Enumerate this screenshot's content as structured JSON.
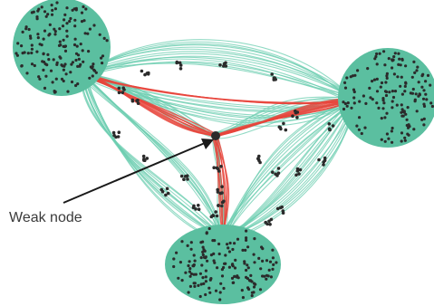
{
  "figure": {
    "annotation": "Weak node"
  },
  "colors": {
    "background": "#ffffff",
    "cluster_fill": "#5bbfa0",
    "edge_normal": "#6ccdb0",
    "edge_highlight": "#e8453c",
    "node_dot": "#2b2b2b",
    "arrow": "#1a1a1a"
  },
  "network": {
    "clusters": [
      {
        "id": "top-left"
      },
      {
        "id": "right"
      },
      {
        "id": "bottom"
      }
    ],
    "weak_node": {
      "id": "hub"
    }
  }
}
